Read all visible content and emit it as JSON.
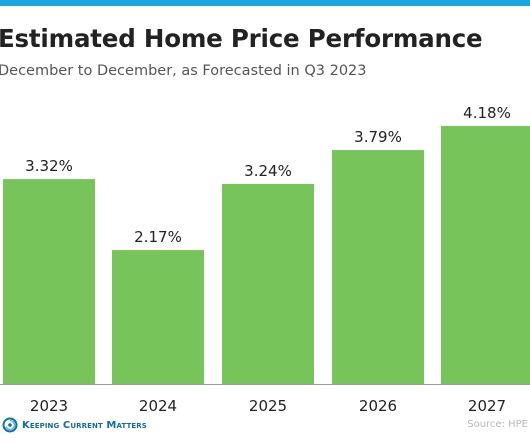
{
  "header": {
    "title": "Estimated Home Price Performance",
    "subtitle": "December to December, as Forecasted in Q3 2023"
  },
  "footer": {
    "logo_text": "Keeping Current Matters",
    "source": "Source: HPE"
  },
  "colors": {
    "bar": "#77c45a",
    "top_stripe": "#1aa5e1",
    "logo": "#0f6ea3"
  },
  "chart_data": {
    "type": "bar",
    "title": "Estimated Home Price Performance",
    "subtitle": "December to December, as Forecasted in Q3 2023",
    "categories": [
      "2023",
      "2024",
      "2025",
      "2026",
      "2027"
    ],
    "values": [
      3.32,
      2.17,
      3.24,
      3.79,
      4.18
    ],
    "value_labels": [
      "3.32%",
      "2.17%",
      "3.24%",
      "3.79%",
      "4.18%"
    ],
    "xlabel": "",
    "ylabel": "",
    "ylim": [
      0,
      4.18
    ],
    "grid": false,
    "legend": "none"
  }
}
